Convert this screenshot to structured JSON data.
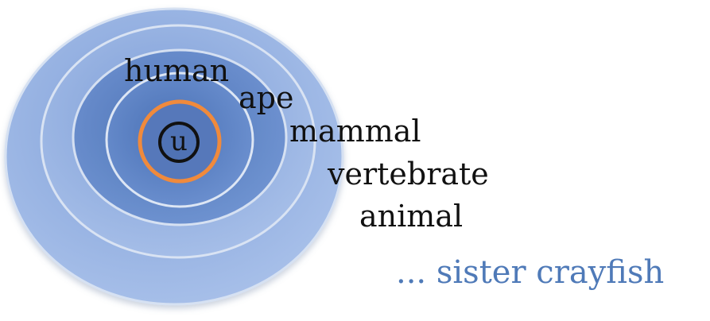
{
  "diagram": {
    "rings": [
      {
        "label": "human"
      },
      {
        "label": "ape"
      },
      {
        "label": "mammal"
      },
      {
        "label": "vertebrate"
      },
      {
        "label": "animal"
      }
    ],
    "trailing_label": "... sister crayfish",
    "center_label": "u",
    "colors": {
      "ring_fill_light": "#a9c4f0",
      "ring_fill_dark": "#4f77b8",
      "ring_stroke": "#d6e1f2",
      "highlight_ring": "#f08a3c",
      "center_circle": "#111111",
      "text": "#111111",
      "trailing_text": "#4f7ab8"
    }
  }
}
